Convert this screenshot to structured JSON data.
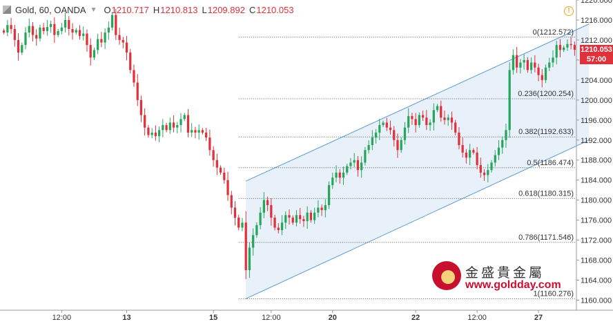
{
  "legend": {
    "symbol": "Gold, 60, OANDA",
    "open_label": "O",
    "open": "1210.717",
    "high_label": "H",
    "high": "1210.813",
    "low_label": "L",
    "low": "1209.892",
    "close_label": "C",
    "close": "1210.053"
  },
  "price_tags": {
    "last_price": "1210.053",
    "countdown": "57:00",
    "last_color": "#e0303a",
    "countdown_color": "#e0303a"
  },
  "watermark": {
    "chinese": "金盛貴金屬",
    "url": "www.goldday.com"
  },
  "colors": {
    "up": "#26a65b",
    "down": "#e0303a",
    "channel_line": "#5b9bd5",
    "channel_fill": "#dbe8f7",
    "fib_line": "#555555",
    "info": "#f5a623"
  },
  "chart_data": {
    "type": "candlestick",
    "symbol": "Gold",
    "interval": "60",
    "source": "OANDA",
    "y_axis": {
      "min": 1158,
      "max": 1220,
      "step": 4,
      "ticks": [
        "1160.000",
        "1164.000",
        "1168.000",
        "1172.000",
        "1176.000",
        "1180.000",
        "1184.000",
        "1188.000",
        "1192.000",
        "1196.000",
        "1200.000",
        "1204.000",
        "1208.000",
        "1212.000",
        "1216.000",
        "1220.000"
      ]
    },
    "x_axis": {
      "ticks": [
        {
          "label": "12:00",
          "idx": 16,
          "bold": false
        },
        {
          "label": "13",
          "idx": 34,
          "bold": true
        },
        {
          "label": "15",
          "idx": 58,
          "bold": true
        },
        {
          "label": "12:00",
          "idx": 74,
          "bold": false
        },
        {
          "label": "20",
          "idx": 91,
          "bold": true
        },
        {
          "label": "22",
          "idx": 114,
          "bold": true
        },
        {
          "label": "12:00",
          "idx": 131,
          "bold": false
        },
        {
          "label": "27",
          "idx": 148,
          "bold": true
        }
      ]
    },
    "fibonacci": [
      {
        "level": "0",
        "price": 1212.572
      },
      {
        "level": "0.236",
        "price": 1200.254
      },
      {
        "level": "0.382",
        "price": 1192.633
      },
      {
        "level": "0.5",
        "price": 1186.474
      },
      {
        "level": "0.618",
        "price": 1180.315
      },
      {
        "level": "0.786",
        "price": 1171.546
      },
      {
        "level": "1",
        "price": 1160.276
      }
    ],
    "fib_labels": [
      "0(1212.572)",
      "0.236(1200.254)",
      "0.382(1192.633)",
      "0.5(1186.474)",
      "0.618(1180.315)",
      "0.786(1171.546)",
      "1(1160.276)"
    ],
    "fib_start_idx": 65,
    "channel": {
      "upper": {
        "from": {
          "idx": 67,
          "price": 1183.8
        },
        "to": {
          "idx": 162,
          "price": 1215.2
        }
      },
      "lower": {
        "from": {
          "idx": 67,
          "price": 1160.3
        },
        "to": {
          "idx": 162,
          "price": 1192.0
        }
      }
    },
    "closes": [
      1213.5,
      1215.0,
      1214.2,
      1212.0,
      1209.5,
      1211.0,
      1213.5,
      1214.8,
      1213.0,
      1212.3,
      1214.5,
      1213.8,
      1214.6,
      1215.2,
      1213.0,
      1213.8,
      1214.5,
      1216.0,
      1214.2,
      1213.5,
      1214.0,
      1212.8,
      1213.3,
      1211.0,
      1208.5,
      1210.0,
      1212.2,
      1211.5,
      1213.5,
      1214.5,
      1217.0,
      1213.0,
      1212.0,
      1211.5,
      1209.5,
      1206.0,
      1203.5,
      1200.0,
      1197.0,
      1194.5,
      1193.0,
      1193.5,
      1192.8,
      1194.0,
      1195.0,
      1194.0,
      1195.5,
      1194.5,
      1195.0,
      1196.2,
      1197.0,
      1193.5,
      1194.0,
      1193.5,
      1194.0,
      1193.5,
      1192.5,
      1190.0,
      1188.0,
      1186.5,
      1185.5,
      1184.0,
      1181.0,
      1178.5,
      1176.5,
      1174.5,
      1175.5,
      1166.0,
      1170.5,
      1173.0,
      1175.0,
      1177.5,
      1180.0,
      1179.0,
      1176.5,
      1174.5,
      1174.0,
      1175.5,
      1177.0,
      1176.5,
      1175.5,
      1177.0,
      1176.2,
      1175.8,
      1177.5,
      1176.0,
      1177.5,
      1178.5,
      1178.0,
      1179.0,
      1183.0,
      1184.5,
      1185.5,
      1184.5,
      1185.5,
      1186.8,
      1187.5,
      1188.0,
      1186.0,
      1187.5,
      1190.0,
      1191.0,
      1192.5,
      1193.5,
      1195.0,
      1195.5,
      1194.5,
      1194.0,
      1192.0,
      1190.0,
      1192.0,
      1194.5,
      1196.8,
      1196.2,
      1195.0,
      1197.0,
      1196.5,
      1195.0,
      1195.5,
      1198.0,
      1198.8,
      1196.5,
      1196.0,
      1196.5,
      1195.5,
      1193.5,
      1191.0,
      1189.5,
      1188.5,
      1190.0,
      1189.5,
      1187.0,
      1185.5,
      1185.0,
      1186.0,
      1187.5,
      1189.0,
      1190.5,
      1192.0,
      1194.0,
      1206.0,
      1209.0,
      1206.5,
      1207.5,
      1208.0,
      1206.0,
      1207.5,
      1206.5,
      1205.0,
      1204.0,
      1206.5,
      1207.5,
      1208.5,
      1211.0,
      1210.0,
      1210.5,
      1211.2,
      1211.0,
      1210.053
    ]
  }
}
